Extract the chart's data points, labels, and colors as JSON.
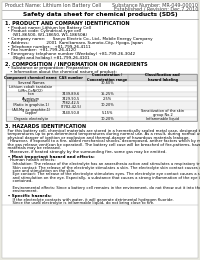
{
  "background_color": "#e8e8e0",
  "page_bg": "#ffffff",
  "title": "Safety data sheet for chemical products (SDS)",
  "header_left": "Product Name: Lithium Ion Battery Cell",
  "header_right_line1": "Substance Number: MR-049-00010",
  "header_right_line2": "Established / Revision: Dec.7.2010",
  "section1_title": "1. PRODUCT AND COMPANY IDENTIFICATION",
  "section1_lines": [
    "  • Product name: Lithium Ion Battery Cell",
    "  • Product code: Cylindrical-type cell",
    "      (W1-86500, W1-18650, W1-18650A)",
    "  • Company name:      Sanyo Electric Co., Ltd., Mobile Energy Company",
    "  • Address:              2001  Kamikamaro, Sumoto-City, Hyogo, Japan",
    "  • Telephone number:   +81-799-26-4111",
    "  • Fax number:  +81-799-26-4120",
    "  • Emergency telephone number (Weekday) +81-799-26-3042",
    "      (Night and holiday) +81-799-26-4101"
  ],
  "section2_title": "2. COMPOSITION / INFORMATION ON INGREDIENTS",
  "section2_intro": "  • Substance or preparation: Preparation",
  "section2_sub": "    • Information about the chemical nature of product:",
  "table_headers": [
    "Component chemical name",
    "CAS number",
    "Concentration /\nConcentration range",
    "Classification and\nhazard labeling"
  ],
  "table_rows": [
    [
      "Several Names",
      "",
      "30-60%",
      ""
    ],
    [
      "Lithium cobalt tantalate\n(LiMn-CoNiO2)",
      "",
      "",
      ""
    ],
    [
      "Iron",
      "7439-89-6",
      "15-25%",
      ""
    ],
    [
      "Aluminum",
      "7429-90-5",
      "2-5%",
      ""
    ],
    [
      "Graphite\n(Ratio in graphite-1)\n(All-Mg as graphite-1)",
      "7782-42-5\n(7782-42-5)",
      "10-20%",
      ""
    ],
    [
      "Copper",
      "7440-50-8",
      "5-15%",
      "Sensitization of the skin\ngroup No.2"
    ],
    [
      "Organic electrolyte",
      "",
      "10-20%",
      "Inflammable liquid"
    ]
  ],
  "section3_title": "3. HAZARDS IDENTIFICATION",
  "section3_lines": [
    "  For this battery cell, chemical materials are stored in a hermetically sealed metal case, designed to withstand",
    "  temperatures up to pre-determined temperatures during normal use. As a result, during normal use, there is no",
    "  physical danger of ignition or explosion and thermal-danger of hazardous materials leakage.",
    "    However, if exposed to a fire, added mechanical shocks, decomposed, anther factors which by miss-use,",
    "  the gas release vent(can be operated). The battery cell case will be breached of fire-patterns, hazardous",
    "  materials may be released.",
    "    Moreover, if heated strongly by the surrounding fire, some gas may be emitted."
  ],
  "bullet1": "  • Most important hazard and effects:",
  "human_label": "    Human health effects:",
  "health_lines": [
    "      Inhalation: The release of the electrolyte has an anaesthesia action and stimulates a respiratory tract.",
    "      Skin contact: The release of the electrolyte stimulates a skin. The electrolyte skin contact causes a",
    "      sore and stimulation on the skin.",
    "      Eye contact: The release of the electrolyte stimulates eyes. The electrolyte eye contact causes a sore",
    "      and stimulation on the eye. Especially, a substance that causes a strong inflammation of the eye is",
    "      contained.",
    "",
    "      Environmental effects: Since a battery cell remains in the environment, do not throw out it into the",
    "      environment."
  ],
  "bullet2": "  • Specific hazards:",
  "specific_lines": [
    "      If the electrolyte contacts with water, it will generate detrimental hydrogen fluoride.",
    "      Since the used electrolyte is inflammable liquid, do not bring close to fire."
  ]
}
